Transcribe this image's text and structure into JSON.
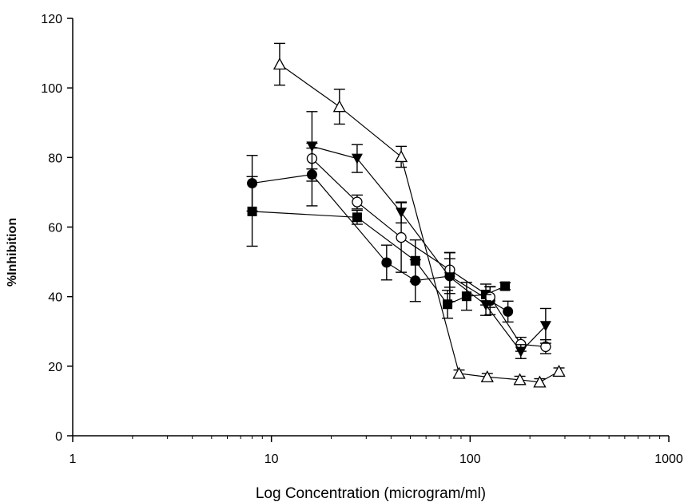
{
  "chart_data": {
    "type": "scatter",
    "title": "",
    "xlabel": "Log Concentration (microgram/ml)",
    "ylabel": "%Inhibition",
    "xscale": "log",
    "xlim": [
      1,
      1000
    ],
    "ylim": [
      0,
      120
    ],
    "xticks": [
      1,
      10,
      100,
      1000
    ],
    "xtick_labels": [
      "1",
      "10",
      "100",
      "1000"
    ],
    "yticks": [
      0,
      20,
      40,
      60,
      80,
      100,
      120
    ],
    "ytick_labels": [
      "0",
      "20",
      "40",
      "60",
      "80",
      "100",
      "120"
    ],
    "grid": false,
    "legend": "none",
    "series": [
      {
        "marker": "filled-square",
        "color": "#000000",
        "points": [
          {
            "x": 8,
            "y": 64.5,
            "err": 10
          },
          {
            "x": 27,
            "y": 62.8,
            "err": 2
          },
          {
            "x": 53,
            "y": 50.3,
            "err": 6
          },
          {
            "x": 77,
            "y": 37.8,
            "err": 4
          },
          {
            "x": 96,
            "y": 40.1,
            "err": 4
          },
          {
            "x": 120,
            "y": 40.6,
            "err": 3
          },
          {
            "x": 150,
            "y": 43.0,
            "err": 1
          }
        ]
      },
      {
        "marker": "filled-circle",
        "color": "#000000",
        "points": [
          {
            "x": 8,
            "y": 72.6,
            "err": 8
          },
          {
            "x": 16,
            "y": 75.1,
            "err": 9
          },
          {
            "x": 38,
            "y": 49.8,
            "err": 5
          },
          {
            "x": 53,
            "y": 44.6,
            "err": 6
          },
          {
            "x": 79,
            "y": 45.9,
            "err": 5
          },
          {
            "x": 126,
            "y": 38.8,
            "err": 4
          },
          {
            "x": 155,
            "y": 35.7,
            "err": 3
          }
        ]
      },
      {
        "marker": "open-circle",
        "color": "#000000",
        "points": [
          {
            "x": 16,
            "y": 79.7,
            "err": 3
          },
          {
            "x": 27,
            "y": 67.2,
            "err": 2
          },
          {
            "x": 45,
            "y": 57.0,
            "err": 10
          },
          {
            "x": 79,
            "y": 47.7,
            "err": 5
          },
          {
            "x": 126,
            "y": 39.9,
            "err": 3
          },
          {
            "x": 180,
            "y": 26.3,
            "err": 2
          },
          {
            "x": 240,
            "y": 25.6,
            "err": 2
          }
        ]
      },
      {
        "marker": "filled-triangle-down",
        "color": "#000000",
        "points": [
          {
            "x": 16,
            "y": 83.2,
            "err": 10
          },
          {
            "x": 27,
            "y": 79.7,
            "err": 4
          },
          {
            "x": 45,
            "y": 64.2,
            "err": 3
          },
          {
            "x": 79,
            "y": 45.6,
            "err": 7
          },
          {
            "x": 120,
            "y": 37.6,
            "err": 3
          },
          {
            "x": 180,
            "y": 24.2,
            "err": 2
          },
          {
            "x": 240,
            "y": 31.6,
            "err": 5
          }
        ]
      },
      {
        "marker": "open-triangle-up",
        "color": "#000000",
        "points": [
          {
            "x": 11,
            "y": 106.8,
            "err": 6
          },
          {
            "x": 22,
            "y": 94.6,
            "err": 5
          },
          {
            "x": 45,
            "y": 80.2,
            "err": 3
          },
          {
            "x": 88,
            "y": 17.9,
            "err": 1
          },
          {
            "x": 122,
            "y": 16.9,
            "err": 1
          },
          {
            "x": 178,
            "y": 16.1,
            "err": 1
          },
          {
            "x": 224,
            "y": 15.4,
            "err": 1
          },
          {
            "x": 280,
            "y": 18.5,
            "err": 1
          }
        ]
      }
    ]
  }
}
